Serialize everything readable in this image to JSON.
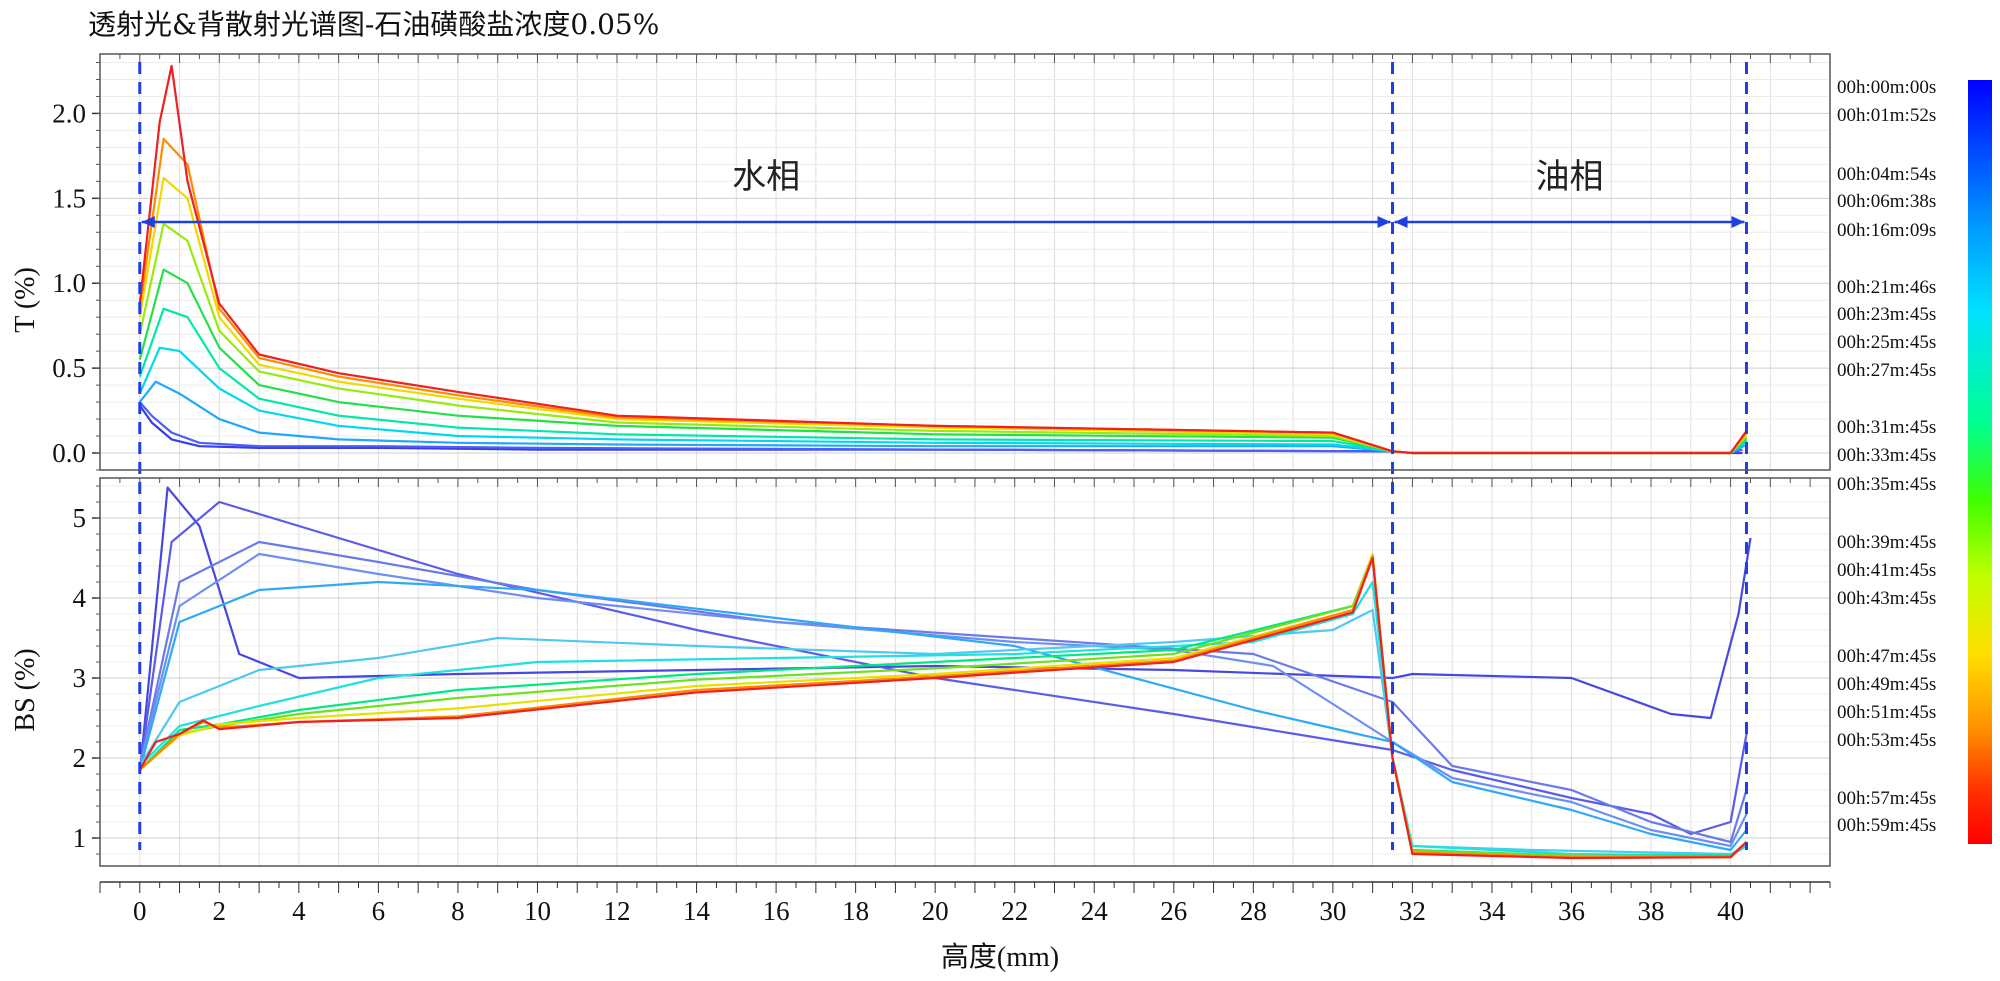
{
  "chart_data": {
    "type": "line",
    "title": "透射光&背散射光谱图-石油磺酸盐浓度0.05%",
    "xlabel": "高度(mm)",
    "xlim": [
      -1,
      42.5
    ],
    "xticks": [
      "0",
      "2",
      "4",
      "6",
      "8",
      "10",
      "12",
      "14",
      "16",
      "18",
      "20",
      "22",
      "24",
      "26",
      "28",
      "30",
      "32",
      "34",
      "36",
      "38",
      "40"
    ],
    "regions": [
      {
        "label": "水相",
        "from": 0,
        "to": 31.5
      },
      {
        "label": "油相",
        "from": 31.5,
        "to": 40.4
      }
    ],
    "time_labels": [
      "00h:00m:00s",
      "00h:01m:52s",
      "00h:04m:54s",
      "00h:06m:38s",
      "00h:16m:09s",
      "00h:21m:46s",
      "00h:23m:45s",
      "00h:25m:45s",
      "00h:27m:45s",
      "00h:31m:45s",
      "00h:33m:45s",
      "00h:35m:45s",
      "00h:39m:45s",
      "00h:41m:45s",
      "00h:43m:45s",
      "00h:47m:45s",
      "00h:49m:45s",
      "00h:51m:45s",
      "00h:53m:45s",
      "00h:57m:45s",
      "00h:59m:45s"
    ],
    "colorbar": [
      "#0000ff",
      "#0050ff",
      "#00a0ff",
      "#00e0ff",
      "#00ff90",
      "#40ff00",
      "#c0ff00",
      "#ffe000",
      "#ff9000",
      "#ff3000",
      "#ff0000"
    ],
    "panels": [
      {
        "name": "T",
        "ylabel": "T (%)",
        "ylim": [
          -0.1,
          2.35
        ],
        "yticks": [
          "0.0",
          "0.5",
          "1.0",
          "1.5",
          "2.0"
        ],
        "series": [
          {
            "name": "00h:00m:00s",
            "color": "#3a3aee",
            "x": [
              0,
              0.3,
              0.8,
              1.5,
              3,
              6,
              10,
              20,
              31.5,
              32,
              40,
              40.3
            ],
            "y": [
              0.28,
              0.18,
              0.08,
              0.04,
              0.03,
              0.03,
              0.02,
              0.02,
              0.01,
              0,
              0,
              0
            ]
          },
          {
            "name": "00h:04m:54s",
            "color": "#4a60f2",
            "x": [
              0,
              0.3,
              0.8,
              1.5,
              3,
              6,
              10,
              20,
              31.5,
              32,
              40,
              40.3
            ],
            "y": [
              0.3,
              0.22,
              0.12,
              0.06,
              0.04,
              0.04,
              0.03,
              0.02,
              0.01,
              0,
              0,
              0.02
            ]
          },
          {
            "name": "00h:16m:09s",
            "color": "#20a8ff",
            "x": [
              0,
              0.4,
              1,
              2,
              3,
              5,
              8,
              12,
              20,
              30,
              31.5,
              32,
              40,
              40.4
            ],
            "y": [
              0.3,
              0.42,
              0.35,
              0.2,
              0.12,
              0.08,
              0.06,
              0.05,
              0.04,
              0.04,
              0.01,
              0,
              0,
              0.05
            ]
          },
          {
            "name": "00h:21m:46s",
            "color": "#00d8f0",
            "x": [
              0,
              0.5,
              1,
              2,
              3,
              5,
              8,
              12,
              20,
              30,
              31.5,
              32,
              40,
              40.4
            ],
            "y": [
              0.35,
              0.62,
              0.6,
              0.38,
              0.25,
              0.16,
              0.1,
              0.08,
              0.06,
              0.05,
              0.01,
              0,
              0,
              0.07
            ]
          },
          {
            "name": "00h:25m:45s",
            "color": "#00e8a8",
            "x": [
              0,
              0.6,
              1.2,
              2,
              3,
              5,
              8,
              12,
              20,
              30,
              31.5,
              32,
              40,
              40.4
            ],
            "y": [
              0.45,
              0.85,
              0.8,
              0.5,
              0.32,
              0.22,
              0.15,
              0.11,
              0.08,
              0.07,
              0.01,
              0,
              0,
              0.08
            ]
          },
          {
            "name": "00h:31m:45s",
            "color": "#22e046",
            "x": [
              0,
              0.6,
              1.2,
              2,
              3,
              5,
              8,
              12,
              20,
              30,
              31.5,
              32,
              40,
              40.4
            ],
            "y": [
              0.55,
              1.08,
              1.0,
              0.62,
              0.4,
              0.3,
              0.22,
              0.16,
              0.11,
              0.09,
              0.01,
              0,
              0,
              0.09
            ]
          },
          {
            "name": "00h:39m:45s",
            "color": "#98ea10",
            "x": [
              0,
              0.6,
              1.2,
              2,
              3,
              5,
              8,
              12,
              20,
              30,
              31.5,
              32,
              40,
              40.4
            ],
            "y": [
              0.7,
              1.35,
              1.25,
              0.72,
              0.48,
              0.38,
              0.28,
              0.18,
              0.13,
              0.1,
              0.01,
              0,
              0,
              0.1
            ]
          },
          {
            "name": "00h:47m:45s",
            "color": "#f0d800",
            "x": [
              0,
              0.6,
              1.2,
              2,
              3,
              5,
              8,
              12,
              20,
              30,
              31.5,
              32,
              40,
              40.4
            ],
            "y": [
              0.8,
              1.62,
              1.5,
              0.8,
              0.52,
              0.42,
              0.32,
              0.2,
              0.15,
              0.11,
              0.01,
              0,
              0,
              0.11
            ]
          },
          {
            "name": "00h:53m:45s",
            "color": "#ff8c00",
            "x": [
              0,
              0.6,
              1.2,
              2,
              3,
              5,
              8,
              12,
              20,
              30,
              31.5,
              32,
              40,
              40.4
            ],
            "y": [
              0.85,
              1.85,
              1.7,
              0.85,
              0.56,
              0.45,
              0.34,
              0.21,
              0.16,
              0.12,
              0.01,
              0,
              0,
              0.12
            ]
          },
          {
            "name": "00h:59m:45s",
            "color": "#ee2020",
            "x": [
              0,
              0.5,
              0.8,
              1.2,
              2,
              3,
              5,
              8,
              12,
              20,
              30,
              31.5,
              32,
              40,
              40.4
            ],
            "y": [
              0.88,
              1.95,
              2.28,
              1.6,
              0.88,
              0.58,
              0.47,
              0.36,
              0.22,
              0.16,
              0.12,
              0.01,
              0,
              0,
              0.13
            ]
          }
        ]
      },
      {
        "name": "BS",
        "ylabel": "BS (%)",
        "ylim": [
          0.65,
          5.5
        ],
        "yticks": [
          "1",
          "2",
          "3",
          "4",
          "5"
        ],
        "series": [
          {
            "name": "00h:00m:00s",
            "color": "#4848e0",
            "x": [
              0,
              0.7,
              1.5,
              2.5,
              4,
              8,
              14,
              20,
              26,
              31.5,
              32,
              36,
              38.5,
              39.5,
              40.2,
              40.5
            ],
            "y": [
              1.8,
              5.38,
              4.9,
              3.3,
              3.0,
              3.05,
              3.1,
              3.15,
              3.1,
              3.0,
              3.05,
              3.0,
              2.55,
              2.5,
              3.8,
              4.75
            ]
          },
          {
            "name": "00h:01m:52s",
            "color": "#5c5ce8",
            "x": [
              0,
              0.8,
              2,
              4,
              8,
              14,
              20,
              26,
              31.5,
              33,
              36,
              38,
              39,
              40,
              40.4
            ],
            "y": [
              1.85,
              4.7,
              5.2,
              4.9,
              4.3,
              3.6,
              3.0,
              2.55,
              2.1,
              1.85,
              1.5,
              1.3,
              1.05,
              1.2,
              2.3
            ]
          },
          {
            "name": "00h:04m:54s",
            "color": "#6a7ae8",
            "x": [
              0,
              1,
              3,
              6,
              10,
              16,
              22,
              28,
              31.5,
              33,
              36,
              38,
              40,
              40.4
            ],
            "y": [
              1.9,
              4.2,
              4.7,
              4.45,
              4.1,
              3.7,
              3.5,
              3.3,
              2.7,
              1.9,
              1.6,
              1.2,
              0.95,
              1.6
            ]
          },
          {
            "name": "00h:06m:38s",
            "color": "#6f8ef0",
            "x": [
              0,
              1,
              3,
              6,
              10,
              16,
              22,
              26,
              28.5,
              31.5,
              33,
              36,
              38,
              40,
              40.4
            ],
            "y": [
              1.9,
              3.9,
              4.55,
              4.3,
              4.0,
              3.7,
              3.45,
              3.35,
              3.15,
              2.2,
              1.75,
              1.45,
              1.1,
              0.9,
              1.3
            ]
          },
          {
            "name": "00h:16m:09s",
            "color": "#30a8f8",
            "x": [
              0,
              1,
              3,
              6,
              10,
              16,
              22,
              28,
              31.5,
              33,
              36,
              38,
              40,
              40.4
            ],
            "y": [
              1.85,
              3.7,
              4.1,
              4.2,
              4.1,
              3.75,
              3.4,
              2.6,
              2.2,
              1.7,
              1.35,
              1.05,
              0.85,
              1.1
            ]
          },
          {
            "name": "00h:21m:46s",
            "color": "#50c8f0",
            "x": [
              0,
              1,
              3,
              6,
              9,
              14,
              20,
              26,
              30,
              31,
              31.5,
              32,
              35,
              40,
              40.4
            ],
            "y": [
              1.9,
              2.7,
              3.1,
              3.25,
              3.5,
              3.4,
              3.3,
              3.45,
              3.6,
              3.85,
              2.0,
              0.9,
              0.85,
              0.8,
              0.9
            ]
          },
          {
            "name": "00h:25m:45s",
            "color": "#20e0e0",
            "x": [
              0,
              1,
              3,
              6,
              10,
              16,
              22,
              28,
              30.5,
              31,
              31.5,
              32,
              36,
              40,
              40.4
            ],
            "y": [
              1.9,
              2.4,
              2.65,
              3.0,
              3.2,
              3.25,
              3.3,
              3.45,
              3.8,
              4.2,
              2.0,
              0.9,
              0.8,
              0.78,
              0.9
            ]
          },
          {
            "name": "00h:31m:45s",
            "color": "#00e880",
            "x": [
              0,
              1,
              2,
              4,
              8,
              14,
              20,
              26,
              30.5,
              31,
              31.5,
              32,
              36,
              40,
              40.4
            ],
            "y": [
              1.85,
              2.35,
              2.42,
              2.6,
              2.85,
              3.05,
              3.2,
              3.35,
              3.9,
              4.5,
              2.0,
              0.85,
              0.78,
              0.78,
              0.95
            ]
          },
          {
            "name": "00h:39m:45s",
            "color": "#70e020",
            "x": [
              0,
              1,
              2,
              4,
              8,
              14,
              20,
              26,
              30.5,
              31,
              31.5,
              32,
              36,
              40,
              40.4
            ],
            "y": [
              1.85,
              2.3,
              2.4,
              2.55,
              2.75,
              2.98,
              3.12,
              3.3,
              3.9,
              4.55,
              2.0,
              0.84,
              0.78,
              0.76,
              0.95
            ]
          },
          {
            "name": "00h:47m:45s",
            "color": "#e8e000",
            "x": [
              0,
              1,
              2,
              4,
              8,
              14,
              20,
              26,
              30.5,
              31,
              31.5,
              32,
              36,
              40,
              40.4
            ],
            "y": [
              1.85,
              2.28,
              2.42,
              2.5,
              2.62,
              2.9,
              3.05,
              3.25,
              3.85,
              4.55,
              2.0,
              0.82,
              0.76,
              0.76,
              0.95
            ]
          },
          {
            "name": "00h:53m:45s",
            "color": "#ff8800",
            "x": [
              0,
              1,
              1.6,
              2,
              4,
              8,
              14,
              20,
              26,
              30.5,
              31,
              31.5,
              32,
              36,
              40,
              40.4
            ],
            "y": [
              1.85,
              2.3,
              2.45,
              2.38,
              2.45,
              2.52,
              2.85,
              3.02,
              3.22,
              3.85,
              4.52,
              2.0,
              0.82,
              0.76,
              0.76,
              0.95
            ]
          },
          {
            "name": "00h:59m:45s",
            "color": "#ee2020",
            "x": [
              0,
              0.4,
              1,
              1.6,
              2,
              4,
              8,
              14,
              20,
              26,
              30.5,
              31,
              31.5,
              32,
              36,
              40,
              40.4
            ],
            "y": [
              1.85,
              2.2,
              2.3,
              2.47,
              2.36,
              2.45,
              2.5,
              2.82,
              3.0,
              3.2,
              3.82,
              4.5,
              2.0,
              0.8,
              0.75,
              0.76,
              0.95
            ]
          }
        ]
      }
    ]
  }
}
